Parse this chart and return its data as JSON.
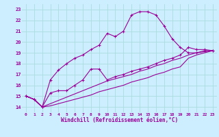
{
  "x_values": [
    0,
    1,
    2,
    3,
    4,
    5,
    6,
    7,
    8,
    9,
    10,
    11,
    12,
    13,
    14,
    15,
    16,
    17,
    18,
    19,
    20,
    21,
    22,
    23
  ],
  "line1": [
    15.0,
    14.7,
    14.0,
    16.5,
    17.4,
    18.0,
    18.5,
    18.8,
    19.3,
    19.7,
    20.8,
    20.5,
    21.0,
    22.5,
    22.8,
    22.8,
    22.5,
    21.5,
    20.3,
    19.5,
    19.0,
    19.0,
    19.2,
    19.2
  ],
  "line2": [
    15.0,
    14.7,
    14.0,
    15.3,
    15.5,
    15.5,
    16.0,
    16.5,
    17.5,
    17.5,
    16.5,
    16.8,
    17.0,
    17.3,
    17.5,
    17.7,
    18.0,
    18.3,
    18.5,
    18.8,
    19.5,
    19.3,
    19.3,
    19.2
  ],
  "line3": [
    15.0,
    14.7,
    14.0,
    14.3,
    14.6,
    14.9,
    15.2,
    15.5,
    15.8,
    16.1,
    16.4,
    16.6,
    16.8,
    17.0,
    17.3,
    17.5,
    17.8,
    18.0,
    18.3,
    18.5,
    18.8,
    19.0,
    19.1,
    19.2
  ],
  "line4": [
    15.0,
    14.7,
    14.0,
    14.1,
    14.3,
    14.5,
    14.7,
    14.9,
    15.1,
    15.4,
    15.6,
    15.8,
    16.0,
    16.3,
    16.5,
    16.7,
    17.0,
    17.2,
    17.5,
    17.7,
    18.5,
    18.8,
    19.0,
    19.2
  ],
  "color": "#990099",
  "bg_color": "#cceeff",
  "grid_color": "#aadddd",
  "xlabel": "Windchill (Refroidissement éolien,°C)",
  "ylim": [
    13.5,
    23.5
  ],
  "xlim": [
    -0.5,
    23.5
  ],
  "yticks": [
    14,
    15,
    16,
    17,
    18,
    19,
    20,
    21,
    22,
    23
  ],
  "xticks": [
    0,
    1,
    2,
    3,
    4,
    5,
    6,
    7,
    8,
    9,
    10,
    11,
    12,
    13,
    14,
    15,
    16,
    17,
    18,
    19,
    20,
    21,
    22,
    23
  ]
}
